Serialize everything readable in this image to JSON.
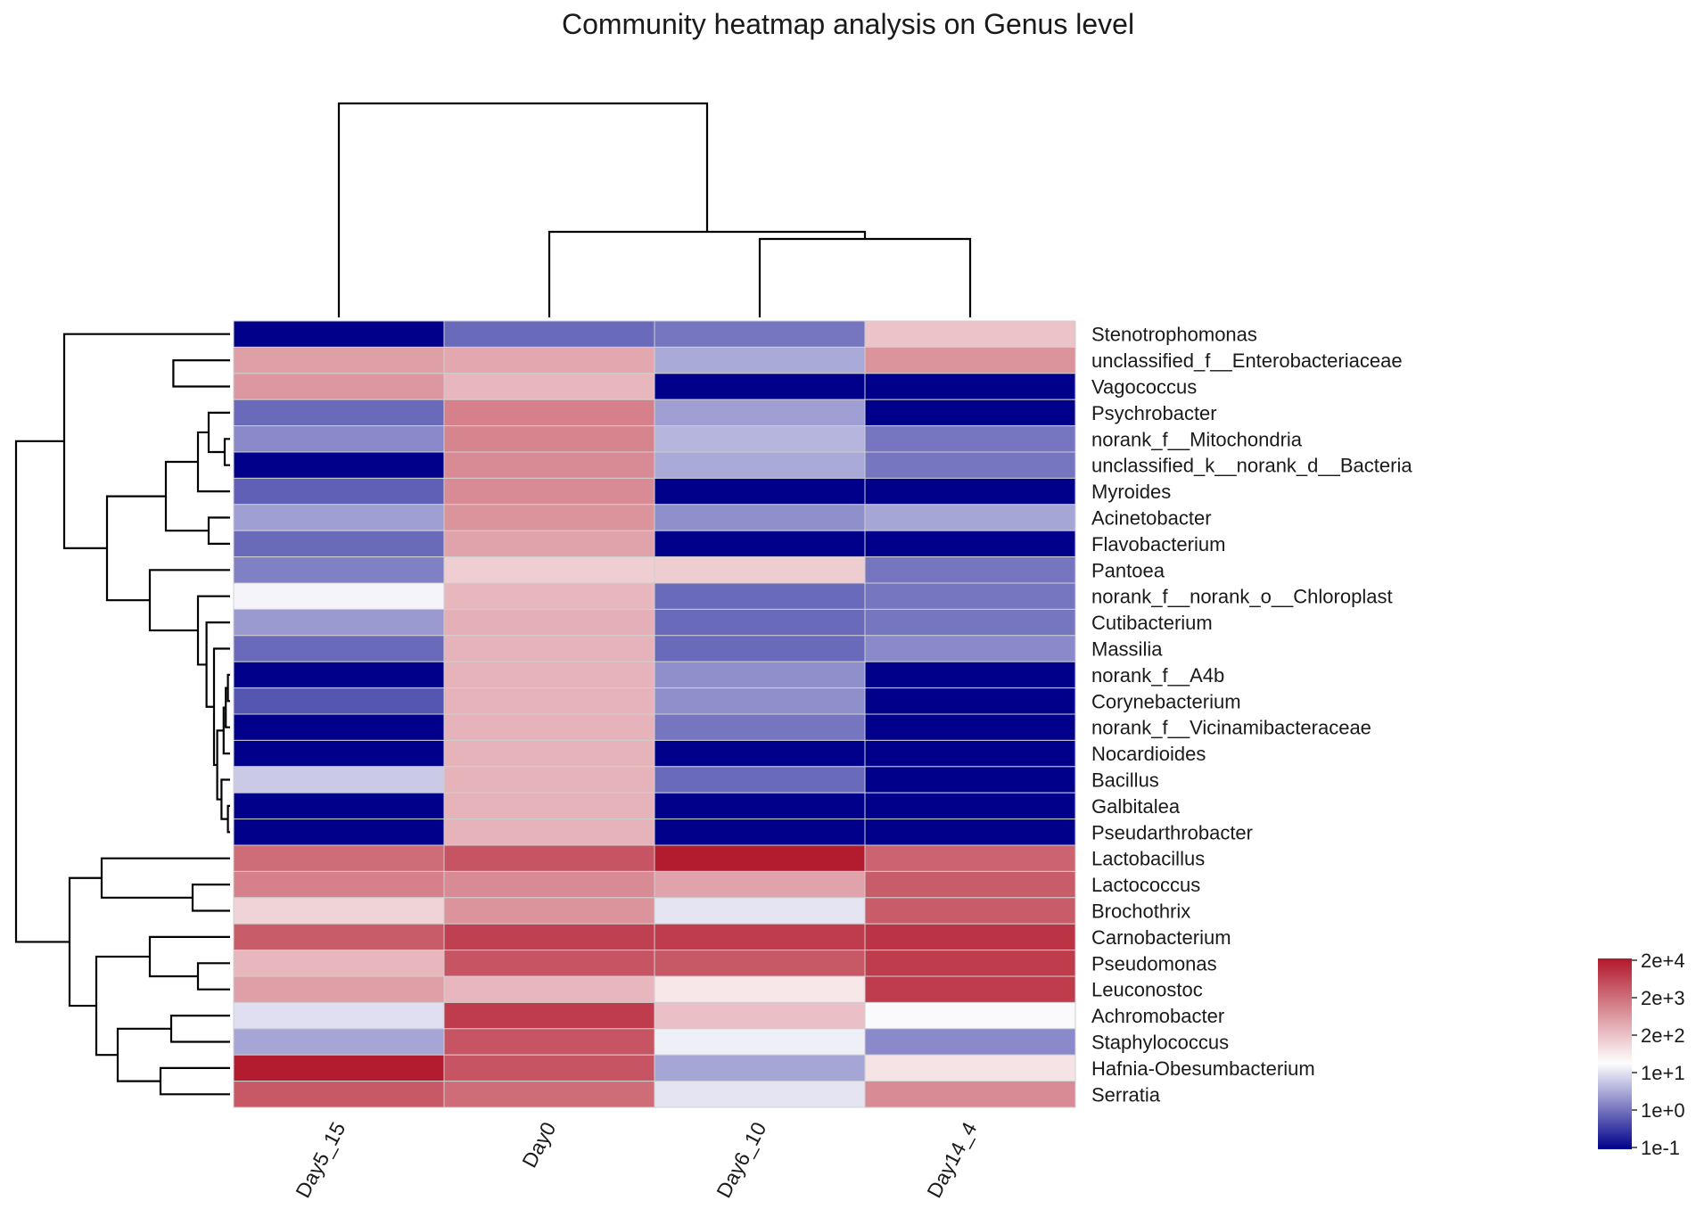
{
  "chart_data": {
    "type": "heatmap",
    "title": "Community heatmap analysis on Genus level",
    "columns": [
      "Day5_15",
      "Day0",
      "Day6_10",
      "Day14_4"
    ],
    "rows": [
      "Stenotrophomonas",
      "unclassified_f__Enterobacteriaceae",
      "Vagococcus",
      "Psychrobacter",
      "norank_f__Mitochondria",
      "unclassified_k__norank_d__Bacteria",
      "Myroides",
      "Acinetobacter",
      "Flavobacterium",
      "Pantoea",
      "norank_f__norank_o__Chloroplast",
      "Cutibacterium",
      "Massilia",
      "norank_f__A4b",
      "Corynebacterium",
      "norank_f__Vicinamibacteraceae",
      "Nocardioides",
      "Bacillus",
      "Galbitalea",
      "Pseudarthrobacter",
      "Lactobacillus",
      "Lactococcus",
      "Brochothrix",
      "Carnobacterium",
      "Pseudomonas",
      "Leuconostoc",
      "Achromobacter",
      "Staphylococcus",
      "Hafnia-Obesumbacterium",
      "Serratia"
    ],
    "values_log10": [
      [
        -1.0,
        0.0,
        0.1,
        2.15
      ],
      [
        2.6,
        2.5,
        0.6,
        2.75
      ],
      [
        2.7,
        2.3,
        -1.0,
        -1.0
      ],
      [
        0.0,
        3.0,
        0.5,
        -1.0
      ],
      [
        0.3,
        2.95,
        0.7,
        0.1
      ],
      [
        -1.0,
        2.85,
        0.6,
        0.1
      ],
      [
        -0.1,
        2.85,
        -1.0,
        -1.0
      ],
      [
        0.5,
        2.75,
        0.35,
        0.55
      ],
      [
        0.0,
        2.55,
        -1.0,
        -1.0
      ],
      [
        0.2,
        2.02,
        2.03,
        0.1
      ],
      [
        1.3,
        2.3,
        0.0,
        0.1
      ],
      [
        0.45,
        2.4,
        0.0,
        0.1
      ],
      [
        0.0,
        2.35,
        0.0,
        0.3
      ],
      [
        -1.0,
        2.35,
        0.35,
        -1.0
      ],
      [
        -0.2,
        2.35,
        0.35,
        -1.0
      ],
      [
        -1.0,
        2.35,
        0.1,
        -1.0
      ],
      [
        -1.0,
        2.35,
        -1.0,
        -1.0
      ],
      [
        0.9,
        2.35,
        0.0,
        -1.0
      ],
      [
        -1.0,
        2.35,
        -1.0,
        -1.0
      ],
      [
        -1.0,
        2.35,
        -1.0,
        -1.0
      ],
      [
        3.25,
        3.55,
        4.25,
        3.35
      ],
      [
        3.0,
        2.85,
        2.55,
        3.45
      ],
      [
        1.95,
        2.75,
        1.15,
        3.45
      ],
      [
        3.45,
        3.8,
        3.85,
        3.95
      ],
      [
        2.3,
        3.55,
        3.5,
        3.85
      ],
      [
        2.6,
        2.3,
        1.7,
        3.85
      ],
      [
        1.1,
        3.85,
        2.2,
        1.35
      ],
      [
        0.55,
        3.55,
        1.25,
        0.3
      ],
      [
        4.25,
        3.55,
        0.55,
        1.75
      ],
      [
        3.5,
        3.25,
        1.15,
        2.85
      ]
    ],
    "color_scale": {
      "ticks": [
        "2e+4",
        "2e+3",
        "2e+2",
        "1e+1",
        "1e+0",
        "1e-1"
      ],
      "colors": {
        "low": "#00008b",
        "mid": "#ffffff",
        "high": "#b2182b"
      }
    },
    "row_dendrogram": [
      {
        "a": 1,
        "b": 2,
        "h": 0.53
      },
      {
        "a": 4,
        "b": 5,
        "h": 0.05
      },
      {
        "a": 3,
        "b": "n1",
        "h": 0.2
      },
      {
        "a": "n2",
        "b": 6,
        "h": 0.3
      },
      {
        "a": 7,
        "b": 8,
        "h": 0.2
      },
      {
        "a": "n3",
        "b": "n4",
        "h": 0.6
      },
      {
        "a": 13,
        "b": 14,
        "h": 0.02
      },
      {
        "a": "n6",
        "b": 15,
        "h": 0.04
      },
      {
        "a": "n7",
        "b": 16,
        "h": 0.06
      },
      {
        "a": 18,
        "b": 19,
        "h": 0.02
      },
      {
        "a": 17,
        "b": "n9",
        "h": 0.08
      },
      {
        "a": "n8",
        "b": "n10",
        "h": 0.12
      },
      {
        "a": 12,
        "b": "n11",
        "h": 0.15
      },
      {
        "a": 11,
        "b": "n12",
        "h": 0.22
      },
      {
        "a": 10,
        "b": "n13",
        "h": 0.3
      },
      {
        "a": 9,
        "b": "n14",
        "h": 0.75
      },
      {
        "a": "n5",
        "b": "n15",
        "h": 1.15
      },
      {
        "a": 0,
        "b": "n16",
        "h": 1.55
      },
      {
        "a": 21,
        "b": 22,
        "h": 0.35
      },
      {
        "a": 20,
        "b": "n18",
        "h": 1.2
      },
      {
        "a": 24,
        "b": 25,
        "h": 0.3
      },
      {
        "a": 23,
        "b": "n20",
        "h": 0.75
      },
      {
        "a": 26,
        "b": 27,
        "h": 0.55
      },
      {
        "a": 28,
        "b": 29,
        "h": 0.65
      },
      {
        "a": "n22",
        "b": "n23",
        "h": 1.05
      },
      {
        "a": "n21",
        "b": "n24",
        "h": 1.25
      },
      {
        "a": "n19",
        "b": "n25",
        "h": 1.5
      },
      {
        "a": "n17",
        "b": "n26",
        "h": 2.0
      }
    ],
    "column_dendrogram": [
      {
        "a": 2,
        "b": 3,
        "h": 0.55
      },
      {
        "a": 1,
        "b": "n0",
        "h": 0.6
      },
      {
        "a": 0,
        "b": "n1",
        "h": 1.5
      }
    ]
  }
}
